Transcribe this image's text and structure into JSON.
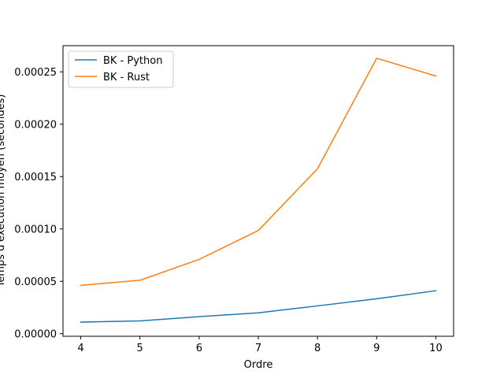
{
  "chart_data": {
    "type": "line",
    "title": "",
    "xlabel": "Ordre",
    "ylabel": "Temps d'exécution moyen (secondes)",
    "x": [
      4,
      5,
      6,
      7,
      8,
      9,
      10
    ],
    "xlim": [
      3.7,
      10.3
    ],
    "ylim": [
      -2.5e-06,
      0.000275
    ],
    "xticks": [
      4,
      5,
      6,
      7,
      8,
      9,
      10
    ],
    "yticks": [
      0,
      5e-05,
      0.0001,
      0.00015,
      0.0002,
      0.00025
    ],
    "ytick_labels": [
      "0.00000",
      "0.00005",
      "0.00010",
      "0.00015",
      "0.00020",
      "0.00025"
    ],
    "grid": false,
    "legend_position": "top-left",
    "series": [
      {
        "name": "BK - Python",
        "color": "#1f77b4",
        "values": [
          1.1e-05,
          1.22e-05,
          1.62e-05,
          1.99e-05,
          2.65e-05,
          3.33e-05,
          4.1e-05
        ]
      },
      {
        "name": "BK - Rust",
        "color": "#ff7f0e",
        "values": [
          4.61e-05,
          5.1e-05,
          7.09e-05,
          9.85e-05,
          0.0001575,
          0.000263,
          0.000246
        ]
      }
    ]
  }
}
